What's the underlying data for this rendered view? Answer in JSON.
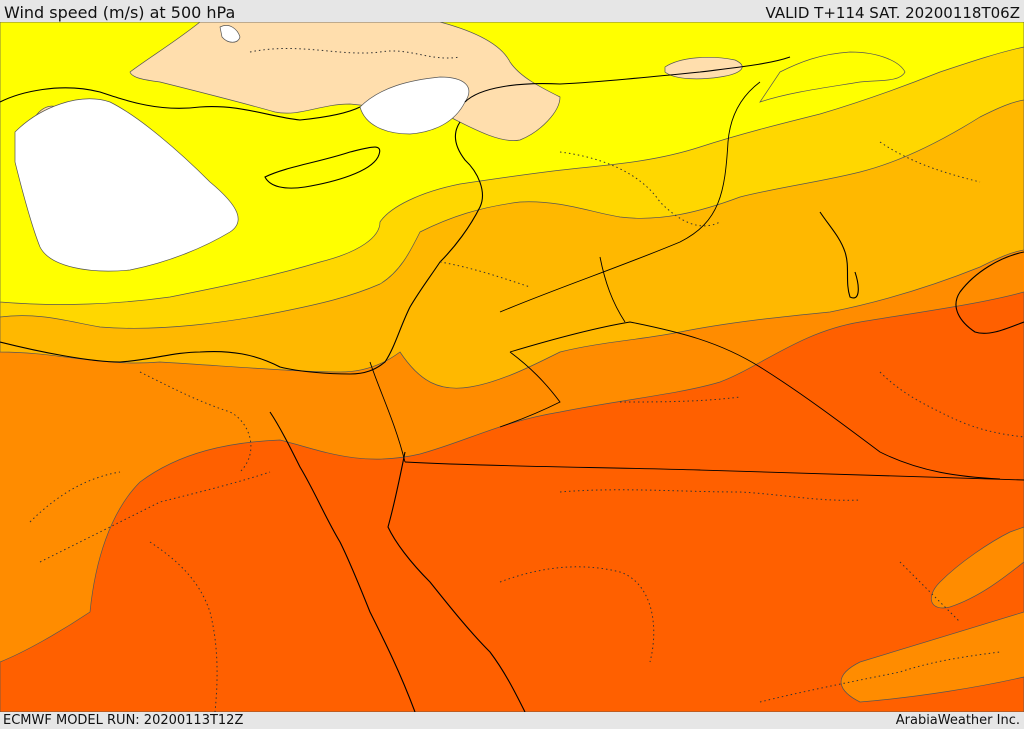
{
  "header": {
    "title": "Wind speed (m/s) at 500 hPa",
    "valid_time": "VALID T+114 SAT. 20200118T06Z"
  },
  "footer": {
    "model_run": "ECMWF MODEL RUN: 20200113T12Z",
    "credit": "ArabiaWeather Inc."
  },
  "colors": {
    "lowest_band": "#ffffff",
    "band_2": "#ffdead",
    "band_3": "#ffff00",
    "band_4": "#ffd700",
    "band_5": "#ffb800",
    "band_6": "#ff8c00",
    "band_7": "#ff6000",
    "contour": "#555555",
    "coastline": "#000000"
  }
}
